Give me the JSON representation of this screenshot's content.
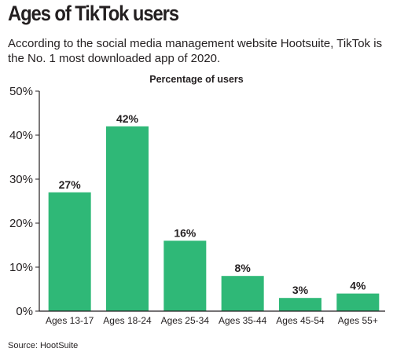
{
  "title": "Ages of TikTok users",
  "subtitle": "According to the social media management website Hootsuite, TikTok is the No. 1 most downloaded app of 2020.",
  "source": "Source: HootSuite",
  "colors": {
    "bar": "#2fb877",
    "text": "#231f20",
    "axis": "#231f20"
  },
  "chart_data": {
    "type": "bar",
    "title": "Percentage of users",
    "xlabel": "",
    "ylabel": "",
    "categories": [
      "Ages 13-17",
      "Ages 18-24",
      "Ages 25-34",
      "Ages 35-44",
      "Ages 45-54",
      "Ages 55+"
    ],
    "values": [
      27,
      42,
      16,
      8,
      3,
      4
    ],
    "data_labels": [
      "27%",
      "42%",
      "16%",
      "8%",
      "3%",
      "4%"
    ],
    "ylim": [
      0,
      50
    ],
    "yticks": [
      0,
      10,
      20,
      30,
      40,
      50
    ],
    "ytick_labels": [
      "0%",
      "10%",
      "20%",
      "30%",
      "40%",
      "50%"
    ],
    "grid": false,
    "legend": "none"
  }
}
